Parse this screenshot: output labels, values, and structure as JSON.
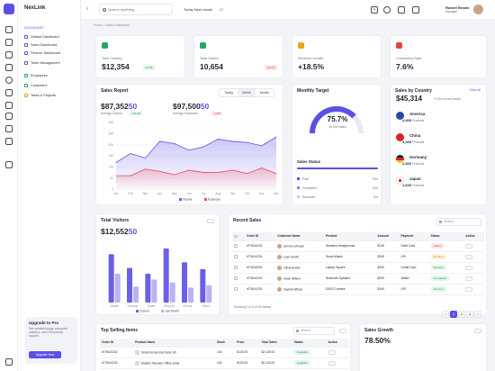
{
  "brand": "NexLink",
  "sidebar": {
    "group": "DASHBOARD",
    "items": [
      {
        "label": "Default Dashboard"
      },
      {
        "label": "Sales Dashboard"
      },
      {
        "label": "Finance Dashboard"
      },
      {
        "label": "Team Management"
      },
      {
        "label": "Employees"
      },
      {
        "label": "Customers"
      },
      {
        "label": "Tasks & Projects"
      }
    ],
    "promo": {
      "title": "Upgrade to Pro",
      "desc": "Get unlimited leads, advanced analytics, and CRM priority support.",
      "button": "Upgrade Now"
    }
  },
  "header": {
    "search_placeholder": "Search anything...",
    "leads_label": "Today New Leads",
    "leads_value": "27",
    "user_name": "Robert Brown",
    "user_role": "Manager"
  },
  "breadcrumb": "Home  >  Sales Dashboard",
  "stats": [
    {
      "label": "Total Country",
      "value": "$12,354",
      "badge": "+0.4%",
      "dir": "up",
      "color": "#22a861"
    },
    {
      "label": "Total Orders",
      "value": "10,654",
      "badge": "-10.2%",
      "dir": "dn",
      "color": "#22a861"
    },
    {
      "label": "Revenue Growth",
      "value": "+18.5%",
      "badge": "",
      "dir": "up",
      "color": "#e2a51c"
    },
    {
      "label": "Conversion Rate",
      "value": "7.6%",
      "badge": "",
      "dir": "up",
      "color": "#e24646"
    }
  ],
  "sales_report": {
    "title": "Sales Report",
    "tabs": [
      "Today",
      "Week",
      "Month"
    ],
    "income_value": "$87,352",
    "income_suffix": "50",
    "income_label": "Average Income",
    "income_badge": "+15.6%",
    "expense_value": "$97,500",
    "expense_suffix": "50",
    "expense_label": "Average Expenses",
    "expense_badge": "-4.3%",
    "legend": [
      "Income",
      "Expenses"
    ]
  },
  "monthly_target": {
    "title": "Monthly Target",
    "percent": "75.7%",
    "sub": "30,500 Sales",
    "status_title": "Sales Status",
    "status": [
      {
        "label": "Paid",
        "value": "75%"
      },
      {
        "label": "Completed",
        "value": "13%"
      },
      {
        "label": "Refunded",
        "value": "8%"
      }
    ]
  },
  "by_country": {
    "title": "Sales by Country",
    "view_all": "View All",
    "total": "$45,314",
    "total_note": "+0.3% vs last month",
    "rows": [
      {
        "name": "America",
        "value": "4,265",
        "label": "Products",
        "color": "#2a4aa8"
      },
      {
        "name": "China",
        "value": "3,265",
        "label": "Products",
        "color": "#d9261c"
      },
      {
        "name": "Germany",
        "value": "2,660",
        "label": "Products",
        "color": "#222222"
      },
      {
        "name": "Japan",
        "value": "1,640",
        "label": "Products",
        "color": "#ffffff"
      }
    ]
  },
  "visitors": {
    "title": "Total Visitors",
    "value": "$12,552",
    "value_suffix": "50",
    "legend": [
      "Current",
      "Last Month"
    ]
  },
  "recent_sales": {
    "title": "Recent Sales",
    "search_placeholder": "Search",
    "headers": [
      "Order ID",
      "Customer Name",
      "Product",
      "Amount",
      "Payment",
      "Status",
      "Action"
    ],
    "rows": [
      [
        "#TXN10231",
        "Emma Johnson",
        "Wireless Headphones",
        "$249",
        "Debit Card",
        "Failed",
        "red"
      ],
      [
        "#TXN10231",
        "Liam Smith",
        "Smart Watch",
        "$349",
        "UPI",
        "Pending",
        "amber"
      ],
      [
        "#TXN10231",
        "Olivia Brown",
        "Laptop Square",
        "$349",
        "Credit Card",
        "Success",
        "green"
      ],
      [
        "#TXN10231",
        "Noah Wilson",
        "Bluetooth Speaker",
        "$299",
        "Wallet",
        "Completed",
        "green"
      ],
      [
        "#TXN10231",
        "Sophia Wilson",
        "DSLR Camera",
        "$349",
        "UPI",
        "Success",
        "green"
      ]
    ],
    "footer": "Showing 1 to 5 of 15 entries",
    "pages": [
      "1",
      "2",
      "3"
    ]
  },
  "top_selling": {
    "title": "Top Selling Items",
    "search_placeholder": "Search",
    "headers": [
      "Order ID",
      "Product Name",
      "Stock",
      "Price",
      "Total Sales",
      "Status",
      "Action"
    ],
    "rows": [
      [
        "#TXN10232",
        "Smart Home Electronic Kit",
        "130",
        "$130.00",
        "$2,130.00",
        "Available"
      ],
      [
        "#TXN10232",
        "Modern Wooden Office Desk",
        "100",
        "$130.00",
        "$2,130.00",
        "Available"
      ]
    ]
  },
  "sales_growth": {
    "title": "Sales Growth",
    "value": "78.50%"
  },
  "chart_data": [
    {
      "type": "area",
      "x": [
        "Jan",
        "Feb",
        "Mar",
        "Apr",
        "May",
        "Jun",
        "Jul",
        "Aug",
        "Sep",
        "Oct",
        "Nov",
        "Dec"
      ],
      "ylim": [
        0,
        300
      ],
      "y_ticks": [
        "0",
        "50",
        "100",
        "150",
        "200",
        "250",
        "300"
      ],
      "series": [
        {
          "name": "Income",
          "color": "#6a5fe8",
          "values": [
            120,
            160,
            140,
            215,
            205,
            175,
            190,
            225,
            215,
            210,
            195,
            235
          ]
        },
        {
          "name": "Expenses",
          "color": "#e8576a",
          "values": [
            60,
            60,
            90,
            80,
            65,
            85,
            75,
            75,
            85,
            70,
            95,
            70
          ]
        }
      ]
    },
    {
      "type": "bar",
      "categories": [
        "Mobile",
        "Desktop",
        "Tablet",
        "iPad pro",
        "iPhone",
        "Other"
      ],
      "ylim": [
        0,
        100
      ],
      "series": [
        {
          "name": "Current",
          "color": "#6a5fe8",
          "values": [
            84,
            60,
            50,
            94,
            70,
            58
          ]
        },
        {
          "name": "Last Month",
          "color": "#b9b3f5",
          "values": [
            50,
            28,
            40,
            35,
            26,
            30
          ]
        }
      ]
    }
  ]
}
